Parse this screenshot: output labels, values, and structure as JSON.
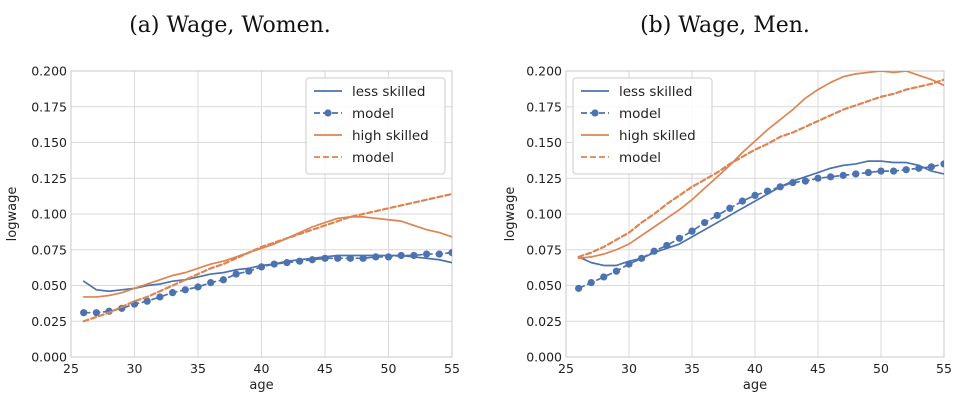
{
  "colors": {
    "less_skilled": "#4c72b0",
    "high_skilled": "#dd8452",
    "grid": "#d9d9d9",
    "axes_edge": "#c8c8c8"
  },
  "chart_data": [
    {
      "type": "line",
      "title": "(a) Wage, Women.",
      "xlabel": "age",
      "ylabel": "logwage",
      "xlim": [
        25,
        55
      ],
      "ylim": [
        0.0,
        0.2
      ],
      "x_ticks": [
        "25",
        "30",
        "35",
        "40",
        "45",
        "50",
        "55"
      ],
      "y_ticks": [
        "0.000",
        "0.025",
        "0.050",
        "0.075",
        "0.100",
        "0.125",
        "0.150",
        "0.175",
        "0.200"
      ],
      "grid": true,
      "legend_position": "top-right",
      "x": [
        26,
        27,
        28,
        29,
        30,
        31,
        32,
        33,
        34,
        35,
        36,
        37,
        38,
        39,
        40,
        41,
        42,
        43,
        44,
        45,
        46,
        47,
        48,
        49,
        50,
        51,
        52,
        53,
        54,
        55
      ],
      "series": [
        {
          "name": "less skilled",
          "style": "solid",
          "color": "#4c72b0",
          "values": [
            0.053,
            0.047,
            0.046,
            0.047,
            0.048,
            0.05,
            0.051,
            0.053,
            0.054,
            0.056,
            0.058,
            0.059,
            0.061,
            0.062,
            0.064,
            0.065,
            0.067,
            0.068,
            0.069,
            0.07,
            0.071,
            0.071,
            0.071,
            0.071,
            0.071,
            0.071,
            0.07,
            0.069,
            0.068,
            0.066
          ]
        },
        {
          "name": "model",
          "style": "dashed-dots",
          "color": "#4c72b0",
          "values": [
            0.031,
            0.031,
            0.032,
            0.034,
            0.037,
            0.039,
            0.042,
            0.045,
            0.047,
            0.049,
            0.052,
            0.054,
            0.058,
            0.06,
            0.063,
            0.065,
            0.066,
            0.067,
            0.068,
            0.069,
            0.069,
            0.069,
            0.069,
            0.07,
            0.07,
            0.071,
            0.071,
            0.072,
            0.072,
            0.073
          ]
        },
        {
          "name": "high skilled",
          "style": "solid",
          "color": "#dd8452",
          "values": [
            0.042,
            0.042,
            0.043,
            0.045,
            0.048,
            0.051,
            0.054,
            0.057,
            0.059,
            0.062,
            0.065,
            0.067,
            0.07,
            0.073,
            0.076,
            0.079,
            0.083,
            0.087,
            0.091,
            0.094,
            0.097,
            0.098,
            0.098,
            0.097,
            0.096,
            0.095,
            0.092,
            0.089,
            0.087,
            0.084
          ]
        },
        {
          "name": "model",
          "style": "dashed",
          "color": "#dd8452",
          "values": [
            0.025,
            0.028,
            0.031,
            0.035,
            0.039,
            0.042,
            0.046,
            0.05,
            0.054,
            0.058,
            0.062,
            0.065,
            0.069,
            0.073,
            0.077,
            0.08,
            0.083,
            0.086,
            0.089,
            0.092,
            0.095,
            0.098,
            0.1,
            0.102,
            0.104,
            0.106,
            0.108,
            0.11,
            0.112,
            0.114
          ]
        }
      ]
    },
    {
      "type": "line",
      "title": "(b) Wage, Men.",
      "xlabel": "age",
      "ylabel": "logwage",
      "xlim": [
        25,
        55
      ],
      "ylim": [
        0.0,
        0.2
      ],
      "x_ticks": [
        "25",
        "30",
        "35",
        "40",
        "45",
        "50",
        "55"
      ],
      "y_ticks": [
        "0.000",
        "0.025",
        "0.050",
        "0.075",
        "0.100",
        "0.125",
        "0.150",
        "0.175",
        "0.200"
      ],
      "grid": true,
      "legend_position": "top-left",
      "x": [
        26,
        27,
        28,
        29,
        30,
        31,
        32,
        33,
        34,
        35,
        36,
        37,
        38,
        39,
        40,
        41,
        42,
        43,
        44,
        45,
        46,
        47,
        48,
        49,
        50,
        51,
        52,
        53,
        54,
        55
      ],
      "series": [
        {
          "name": "less skilled",
          "style": "solid",
          "color": "#4c72b0",
          "values": [
            0.07,
            0.066,
            0.064,
            0.064,
            0.067,
            0.069,
            0.073,
            0.076,
            0.079,
            0.084,
            0.089,
            0.094,
            0.099,
            0.104,
            0.109,
            0.114,
            0.119,
            0.123,
            0.126,
            0.129,
            0.132,
            0.134,
            0.135,
            0.137,
            0.137,
            0.136,
            0.136,
            0.134,
            0.13,
            0.128
          ]
        },
        {
          "name": "model",
          "style": "dashed-dots",
          "color": "#4c72b0",
          "values": [
            0.048,
            0.052,
            0.056,
            0.06,
            0.065,
            0.069,
            0.074,
            0.078,
            0.083,
            0.088,
            0.094,
            0.099,
            0.104,
            0.109,
            0.113,
            0.116,
            0.119,
            0.122,
            0.123,
            0.125,
            0.126,
            0.127,
            0.128,
            0.129,
            0.13,
            0.13,
            0.131,
            0.132,
            0.133,
            0.135
          ]
        },
        {
          "name": "high skilled",
          "style": "solid",
          "color": "#dd8452",
          "values": [
            0.069,
            0.07,
            0.072,
            0.075,
            0.079,
            0.085,
            0.091,
            0.097,
            0.103,
            0.11,
            0.118,
            0.126,
            0.134,
            0.143,
            0.151,
            0.159,
            0.166,
            0.173,
            0.181,
            0.187,
            0.192,
            0.196,
            0.198,
            0.199,
            0.2,
            0.199,
            0.2,
            0.197,
            0.194,
            0.19
          ]
        },
        {
          "name": "model",
          "style": "dashed",
          "color": "#dd8452",
          "values": [
            0.07,
            0.073,
            0.077,
            0.082,
            0.087,
            0.094,
            0.1,
            0.107,
            0.113,
            0.119,
            0.124,
            0.129,
            0.135,
            0.14,
            0.145,
            0.149,
            0.154,
            0.157,
            0.161,
            0.165,
            0.169,
            0.173,
            0.176,
            0.179,
            0.182,
            0.184,
            0.187,
            0.189,
            0.191,
            0.194
          ]
        }
      ]
    }
  ]
}
